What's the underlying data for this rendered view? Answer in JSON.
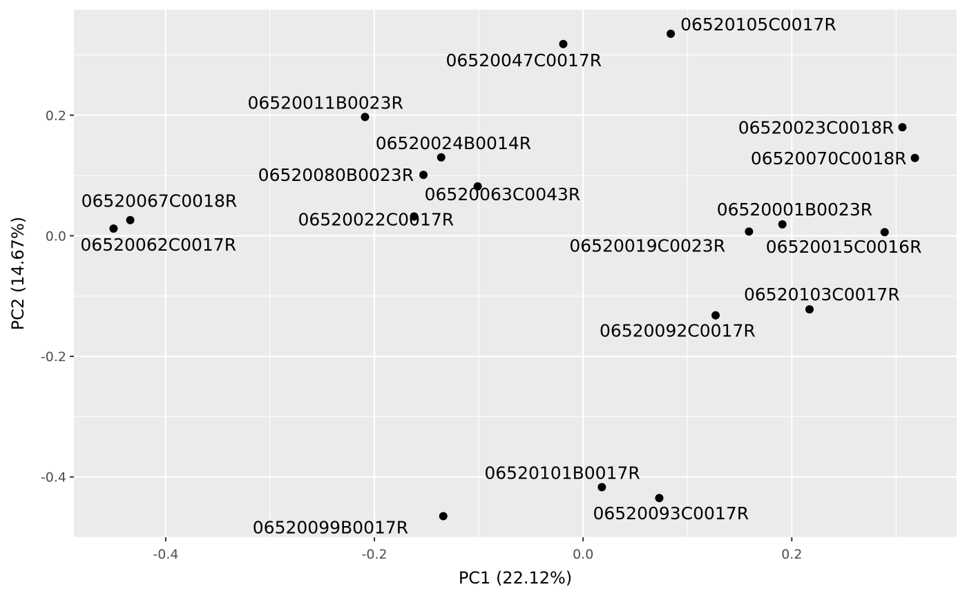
{
  "chart_data": {
    "type": "scatter",
    "title": "",
    "xlabel": "PC1 (22.12%)",
    "ylabel": "PC2 (14.67%)",
    "xlim": [
      -0.488,
      0.358
    ],
    "ylim": [
      -0.5,
      0.375
    ],
    "x_ticks": [
      -0.4,
      -0.2,
      0.0,
      0.2
    ],
    "x_tick_labels": [
      "-0.4",
      "-0.2",
      "0.0",
      "0.2"
    ],
    "y_ticks": [
      -0.4,
      -0.2,
      0.0,
      0.2
    ],
    "y_tick_labels": [
      "-0.4",
      "-0.2",
      "0.0",
      "0.2"
    ],
    "grid": true,
    "background": "#ebebeb",
    "point_color": "#000000",
    "points": [
      {
        "label": "06520105C0017R",
        "x": 0.084,
        "y": 0.335
      },
      {
        "label": "06520047C0017R",
        "x": -0.019,
        "y": 0.318
      },
      {
        "label": "06520011B0023R",
        "x": -0.209,
        "y": 0.197
      },
      {
        "label": "06520023C0018R",
        "x": 0.306,
        "y": 0.18
      },
      {
        "label": "06520024B0014R",
        "x": -0.136,
        "y": 0.13
      },
      {
        "label": "06520070C0018R",
        "x": 0.318,
        "y": 0.129
      },
      {
        "label": "06520080B0023R",
        "x": -0.153,
        "y": 0.101
      },
      {
        "label": "06520063C0043R",
        "x": -0.101,
        "y": 0.082
      },
      {
        "label": "06520067C0018R",
        "x": -0.434,
        "y": 0.026
      },
      {
        "label": "06520062C0017R",
        "x": -0.45,
        "y": 0.012
      },
      {
        "label": "06520022C0017R",
        "x": -0.162,
        "y": 0.032
      },
      {
        "label": "06520001B0023R",
        "x": 0.191,
        "y": 0.019
      },
      {
        "label": "06520019C0023R",
        "x": 0.159,
        "y": 0.007
      },
      {
        "label": "06520015C0016R",
        "x": 0.289,
        "y": 0.006
      },
      {
        "label": "06520103C0017R",
        "x": 0.217,
        "y": -0.122
      },
      {
        "label": "06520092C0017R",
        "x": 0.127,
        "y": -0.132
      },
      {
        "label": "06520101B0017R",
        "x": 0.018,
        "y": -0.417
      },
      {
        "label": "06520093C0017R",
        "x": 0.073,
        "y": -0.435
      },
      {
        "label": "06520099B0017R",
        "x": -0.134,
        "y": -0.465
      }
    ]
  }
}
